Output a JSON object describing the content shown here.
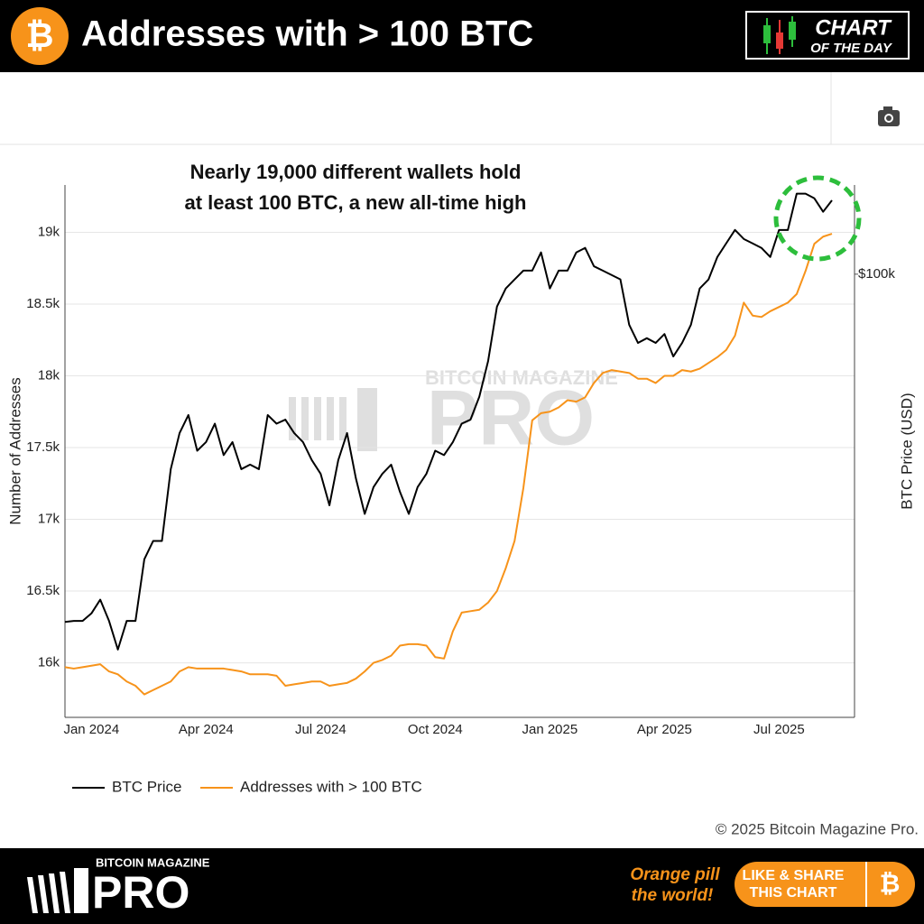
{
  "header": {
    "symbol": "₿",
    "title": "Addresses with > 100 BTC",
    "badge": [
      "CHART",
      "OF THE DAY"
    ]
  },
  "chart_data": {
    "type": "line",
    "annotation": [
      "Nearly 19,000 different wallets hold",
      "at least 100 BTC, a new all-time high"
    ],
    "ylabel": "Number of Addresses",
    "y2label": "BTC Price (USD)",
    "watermark": [
      "BITCOIN MAGAZINE",
      "PRO"
    ],
    "copyright": "© 2025 Bitcoin Magazine Pro.",
    "categories": [
      null,
      null,
      null,
      "Jan 2024",
      null,
      null,
      null,
      null,
      null,
      null,
      null,
      null,
      null,
      null,
      null,
      null,
      "Apr 2024",
      null,
      null,
      null,
      null,
      null,
      null,
      null,
      null,
      null,
      null,
      null,
      null,
      "Jul 2024",
      null,
      null,
      null,
      null,
      null,
      null,
      null,
      null,
      null,
      null,
      null,
      null,
      "Oct 2024",
      null,
      null,
      null,
      null,
      null,
      null,
      null,
      null,
      null,
      null,
      null,
      null,
      "Jan 2025",
      null,
      null,
      null,
      null,
      null,
      null,
      null,
      null,
      null,
      null,
      null,
      null,
      "Apr 2025",
      null,
      null,
      null,
      null,
      null,
      null,
      null,
      null,
      null,
      null,
      null,
      null,
      "Jul 2025",
      null,
      null,
      null,
      null,
      null,
      null
    ],
    "series": [
      {
        "name": "BTC Price",
        "color": "#000000",
        "axis": "y2",
        "values": [
          41900,
          42000,
          42000,
          42800,
          44300,
          42000,
          39100,
          42000,
          42000,
          49000,
          51300,
          51300,
          61400,
          67200,
          70300,
          64300,
          65700,
          68800,
          63600,
          65700,
          61400,
          62100,
          61400,
          70300,
          68800,
          69500,
          67200,
          65700,
          62800,
          60700,
          56100,
          62800,
          67200,
          60000,
          54900,
          58700,
          60700,
          62100,
          58000,
          54900,
          58700,
          60700,
          64300,
          63600,
          65700,
          68800,
          69500,
          73600,
          80500,
          92200,
          96500,
          98700,
          100900,
          100900,
          105600,
          96500,
          100900,
          100900,
          105600,
          106800,
          102000,
          100900,
          99800,
          98700,
          88100,
          84200,
          85200,
          84200,
          86100,
          81400,
          84200,
          88100,
          96500,
          98700,
          104400,
          108000,
          111700,
          109200,
          108000,
          106800,
          104400,
          111700,
          111700,
          122300,
          122300,
          120900,
          116900,
          120300
        ]
      },
      {
        "name": "Addresses with > 100 BTC",
        "color": "#f7931a",
        "values": [
          15970,
          15960,
          15970,
          15980,
          15990,
          15940,
          15920,
          15870,
          15840,
          15780,
          15810,
          15840,
          15870,
          15940,
          15970,
          15960,
          15960,
          15960,
          15960,
          15950,
          15940,
          15920,
          15920,
          15920,
          15910,
          15840,
          15850,
          15860,
          15870,
          15870,
          15840,
          15850,
          15860,
          15890,
          15940,
          16000,
          16020,
          16050,
          16120,
          16130,
          16130,
          16120,
          16040,
          16030,
          16220,
          16350,
          16360,
          16370,
          16420,
          16500,
          16660,
          16850,
          17220,
          17690,
          17740,
          17750,
          17780,
          17830,
          17820,
          17850,
          17950,
          18020,
          18040,
          18030,
          18020,
          17980,
          17980,
          17950,
          18000,
          18000,
          18040,
          18030,
          18050,
          18090,
          18130,
          18180,
          18280,
          18510,
          18420,
          18410,
          18450,
          18480,
          18510,
          18570,
          18730,
          18920,
          18970,
          18990
        ]
      }
    ],
    "ylim": [
      15620,
      19330
    ],
    "yticks": [
      {
        "value": 16000,
        "label": "16k"
      },
      {
        "value": 16500,
        "label": "16.5k"
      },
      {
        "value": 17000,
        "label": "17k"
      },
      {
        "value": 17500,
        "label": "17.5k"
      },
      {
        "value": 18000,
        "label": "18k"
      },
      {
        "value": 18500,
        "label": "18.5k"
      },
      {
        "value": 19000,
        "label": "19k"
      }
    ],
    "y2lim": [
      33000,
      125000
    ],
    "y2scale": "log",
    "y2ticks": [
      {
        "value": 100000,
        "label": "$100k"
      }
    ],
    "grid": true
  },
  "footer": {
    "brand_top": "BITCOIN MAGAZINE",
    "brand": "PRO",
    "slogan": [
      "Orange pill",
      "the world!"
    ],
    "button": [
      "LIKE & SHARE",
      "THIS CHART"
    ],
    "symbol": "₿"
  }
}
